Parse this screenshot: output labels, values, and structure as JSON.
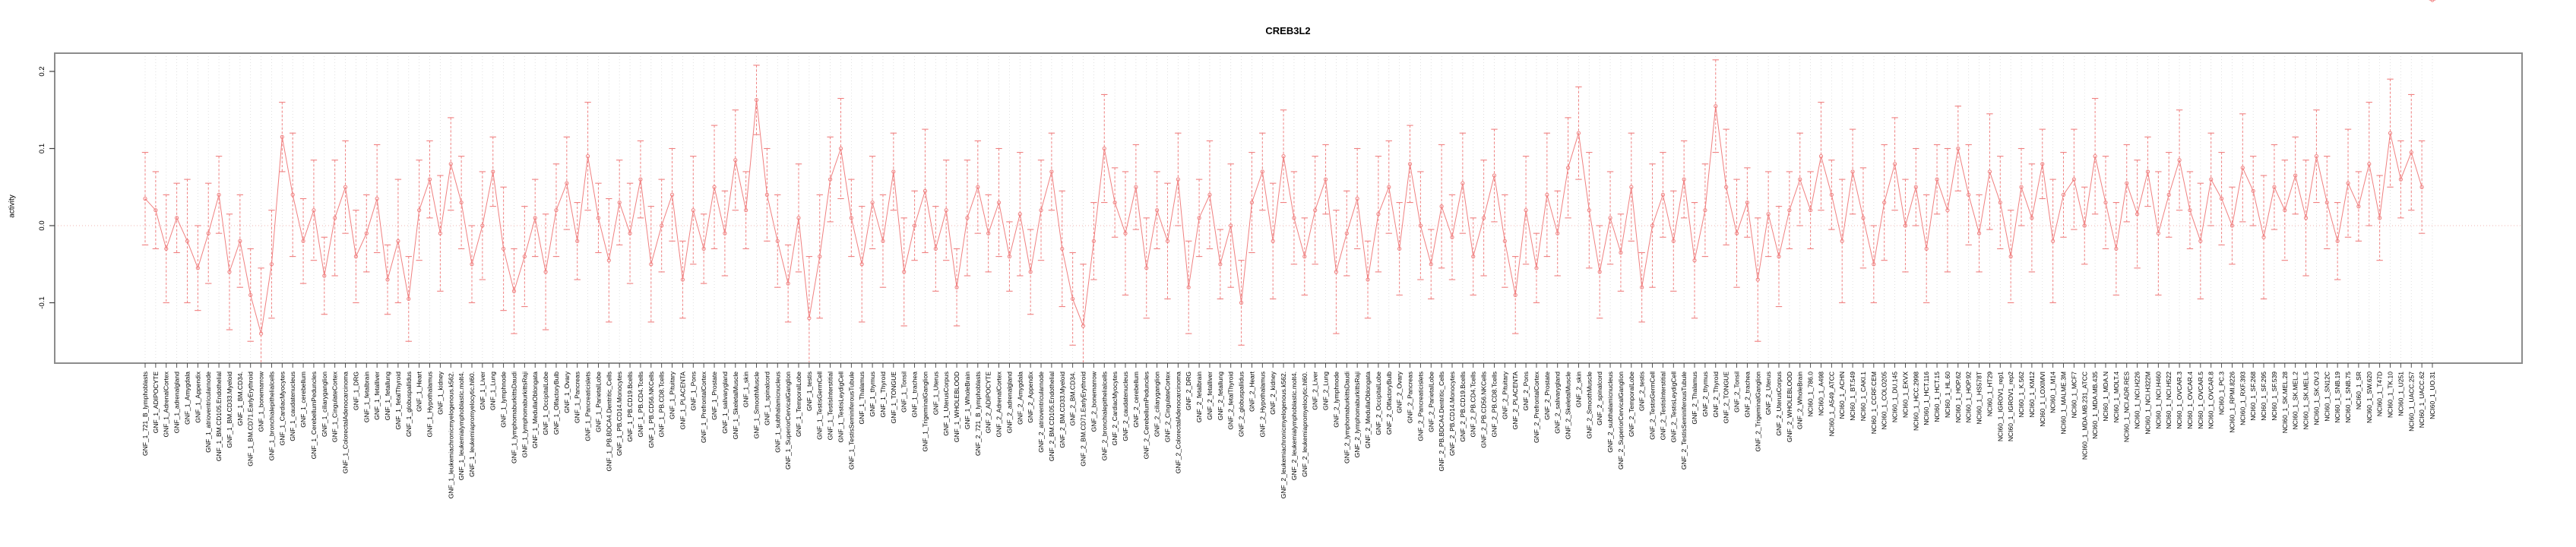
{
  "colors": {
    "series": "#f08080",
    "error_bar": "#f08080",
    "zero_line": "#f2b6b2",
    "grid_line": "#d9d9d9",
    "plot_border": "#8c8c8c",
    "tick": "#404040",
    "text": "#000000",
    "background": "#ffffff"
  },
  "chart_data": {
    "type": "line",
    "title": "CREB3L2",
    "xlabel": "",
    "ylabel": "activity",
    "ylim": [
      -0.178,
      0.224
    ],
    "yticks": [
      -0.1,
      0.0,
      0.1,
      0.2
    ],
    "grid": "vertical dotted gridline at every category; dotted zero line",
    "legend_position": "none",
    "marker": "open-circle",
    "error_bar_style": "dashed vertical line with solid caps",
    "categories": [
      "GNF_1_721_B_lymphoblasts",
      "GNF_1_ADIPOCYTE",
      "GNF_1_AdrenalCortex",
      "GNF_1_adrenalgland",
      "GNF_1_Amygdala",
      "GNF_1_Appendix",
      "GNF_1_atrioventricularnode",
      "GNF_1_BM.CD105.Endothelial",
      "GNF_1_BM.CD33.Myeloid",
      "GNF_1_BM.CD34.",
      "GNF_1_BM.CD71.EarlyErythroid",
      "GNF_1_bonemarrow",
      "GNF_1_bronchialepithelialcells",
      "GNF_1_CardiacMyocytes",
      "GNF_1_caudatenucleus",
      "GNF_1_cerebellum",
      "GNF_1_CerebellumPeduncles",
      "GNF_1_ciliaryganglion",
      "GNF_1_CingulateCortex",
      "GNF_1_ColorectalAdenocarcinoma",
      "GNF_1_DRG",
      "GNF_1_fetalbrain",
      "GNF_1_fetalliver",
      "GNF_1_fetallung",
      "GNF_1_fetalThyroid",
      "GNF_1_globuspallidus",
      "GNF_1_Heart",
      "GNF_1_Hypothalamus",
      "GNF_1_kidney",
      "GNF_1_leukemiachronicmyelogenous.k562.",
      "GNF_1_leukemialymphoblastic.molt4.",
      "GNF_1_leukemiapromyelocytic.hl60.",
      "GNF_1_Liver",
      "GNF_1_Lung",
      "GNF_1_lymphnode",
      "GNF_1_lymphomaburkittsDaudi",
      "GNF_1_lymphomaburkittsRaji",
      "GNF_1_MedullaOblongata",
      "GNF_1_OccipitalLobe",
      "GNF_1_OlfactoryBulb",
      "GNF_1_Ovary",
      "GNF_1_Pancreas",
      "GNF_1_Pancreaticislets",
      "GNF_1_ParietalLobe",
      "GNF_1_PB.BDCA4.Dentritic_Cells",
      "GNF_1_PB.CD14.Monocytes",
      "GNF_1_PB.CD19.Bcells",
      "GNF_1_PB.CD4.Tcells",
      "GNF_1_PB.CD56.NKCells",
      "GNF_1_PB.CD8.Tcells",
      "GNF_1_Pituitary",
      "GNF_1_PLACENTA",
      "GNF_1_Pons",
      "GNF_1_PrefrontalCortex",
      "GNF_1_Prostate",
      "GNF_1_salivarygland",
      "GNF_1_SkeletalMuscle",
      "GNF_1_skin",
      "GNF_1_SmoothMuscle",
      "GNF_1_spinalcord",
      "GNF_1_subthalamicnucleus",
      "GNF_1_SuperiorCervicalGanglion",
      "GNF_1_TemporalLobe",
      "GNF_1_testis",
      "GNF_1_TestisGermCell",
      "GNF_1_TestisInterstitial",
      "GNF_1_TestisLeydigCell",
      "GNF_1_TestisSeminiferousTubule",
      "GNF_1_Thalamus",
      "GNF_1_thymus",
      "GNF_1_Thyroid",
      "GNF_1_TONGUE",
      "GNF_1_Tonsil",
      "GNF_1_trachea",
      "GNF_1_TrigeminalGanglion",
      "GNF_1_Uterus",
      "GNF_1_UterusCorpus",
      "GNF_1_WHOLEBLOOD",
      "GNF_1_WholeBrain",
      "GNF_2_721_B_lymphoblasts",
      "GNF_2_ADIPOCYTE",
      "GNF_2_AdrenalCortex",
      "GNF_2_adrenalgland",
      "GNF_2_Amygdala",
      "GNF_2_Appendix",
      "GNF_2_atrioventricularnode",
      "GNF_2_BM.CD105.Endothelial",
      "GNF_2_BM.CD33.Myeloid",
      "GNF_2_BM.CD34.",
      "GNF_2_BM.CD71.EarlyErythroid",
      "GNF_2_bonemarrow",
      "GNF_2_bronchialepithelialcells",
      "GNF_2_CardiacMyocytes",
      "GNF_2_caudatenucleus",
      "GNF_2_cerebellum",
      "GNF_2_CerebellumPeduncles",
      "GNF_2_ciliaryganglion",
      "GNF_2_CingulateCortex",
      "GNF_2_ColorectalAdenocarcinoma",
      "GNF_2_DRG",
      "GNF_2_fetalbrain",
      "GNF_2_fetalliver",
      "GNF_2_fetallung",
      "GNF_2_fetalThyroid",
      "GNF_2_globuspallidus",
      "GNF_2_Heart",
      "GNF_2_Hypothalamus",
      "GNF_2_kidney",
      "GNF_2_leukemiachronicmyelogenous.k562.",
      "GNF_2_leukemialymphoblastic.molt4.",
      "GNF_2_leukemiapromyelocytic.hl60.",
      "GNF_2_Liver",
      "GNF_2_Lung",
      "GNF_2_lymphnode",
      "GNF_2_lymphomaburkittsDaudi",
      "GNF_2_lymphomaburkittsRaji",
      "GNF_2_MedullaOblongata",
      "GNF_2_OccipitalLobe",
      "GNF_2_OlfactoryBulb",
      "GNF_2_Ovary",
      "GNF_2_Pancreas",
      "GNF_2_Pancreaticislets",
      "GNF_2_ParietalLobe",
      "GNF_2_PB.BDCA4.Dentritic_Cells",
      "GNF_2_PB.CD14.Monocytes",
      "GNF_2_PB.CD19.Bcells",
      "GNF_2_PB.CD4.Tcells",
      "GNF_2_PB.CD56.NKCells",
      "GNF_2_PB.CD8.Tcells",
      "GNF_2_Pituitary",
      "GNF_2_PLACENTA",
      "GNF_2_Pons",
      "GNF_2_PrefrontalCortex",
      "GNF_2_Prostate",
      "GNF_2_salivarygland",
      "GNF_2_SkeletalMuscle",
      "GNF_2_skin",
      "GNF_2_SmoothMuscle",
      "GNF_2_spinalcord",
      "GNF_2_subthalamicnucleus",
      "GNF_2_SuperiorCervicalGanglion",
      "GNF_2_TemporalLobe",
      "GNF_2_testis",
      "GNF_2_TestisGermCell",
      "GNF_2_TestisInterstitial",
      "GNF_2_TestisLeydigCell",
      "GNF_2_TestisSeminiferousTubule",
      "GNF_2_Thalamus",
      "GNF_2_thymus",
      "GNF_2_Thyroid",
      "GNF_2_TONGUE",
      "GNF_2_Tonsil",
      "GNF_2_trachea",
      "GNF_2_TrigeminalGanglion",
      "GNF_2_Uterus",
      "GNF_2_UterusCorpus",
      "GNF_2_WHOLEBLOOD",
      "GNF_2_WholeBrain",
      "NCI60_1_786.0",
      "NCI60_1_A498",
      "NCI60_1_A549_ATCC",
      "NCI60_1_ACHN",
      "NCI60_1_BT.549",
      "NCI60_1_CAKI.1",
      "NCI60_1_CCRF.CEM",
      "NCI60_1_COLO205",
      "NCI60_1_DU.145",
      "NCI60_1_EKVX",
      "NCI60_1_HCC.2998",
      "NCI60_1_HCT.116",
      "NCI60_1_HCT.15",
      "NCI60_1_HL.60",
      "NCI60_1_HOP.62",
      "NCI60_1_HOP.92",
      "NCI60_1_HS578T",
      "NCI60_1_HT29",
      "NCI60_1_IGROV1_rep1",
      "NCI60_1_IGROV1_rep2",
      "NCI60_1_K.562",
      "NCI60_1_KM12",
      "NCI60_1_LOXIMVI",
      "NCI60_1_M14",
      "NCI60_1_MALME.3M",
      "NCI60_1_MCF7",
      "NCI60_1_MDA.MB.231_ATCC",
      "NCI60_1_MDA.MB.435",
      "NCI60_1_MDA.N",
      "NCI60_1_MOLT.4",
      "NCI60_1_NCI.ADR.RES",
      "NCI60_1_NCI.H226",
      "NCI60_1_NCI.H322M",
      "NCI60_1_NCI.H460",
      "NCI60_1_NCI.H522",
      "NCI60_1_OVCAR.3",
      "NCI60_1_OVCAR.4",
      "NCI60_1_OVCAR.5",
      "NCI60_1_OVCAR.8",
      "NCI60_1_PC.3",
      "NCI60_1_RPMI.8226",
      "NCI60_1_RXF.393",
      "NCI60_1_SF.268",
      "NCI60_1_SF.295",
      "NCI60_1_SF.539",
      "NCI60_1_SK.MEL.28",
      "NCI60_1_SK.MEL.2",
      "NCI60_1_SK.MEL.5",
      "NCI60_1_SK.OV.3",
      "NCI60_1_SN12C",
      "NCI60_1_SNB.19",
      "NCI60_1_SNB.75",
      "NCI60_1_SR",
      "NCI60_1_SW.620",
      "NCI60_1_T47D",
      "NCI60_1_TK.10",
      "NCI60_1_U251",
      "NCI60_1_UACC.257",
      "NCI60_1_UACC.62",
      "NCI60_1_UO.31"
    ],
    "values": [
      0.035,
      0.02,
      -0.03,
      0.01,
      -0.02,
      -0.055,
      -0.01,
      0.04,
      -0.06,
      -0.02,
      -0.09,
      -0.14,
      -0.05,
      0.115,
      0.04,
      -0.02,
      0.02,
      -0.065,
      0.01,
      0.05,
      -0.04,
      -0.01,
      0.035,
      -0.07,
      -0.02,
      -0.095,
      0.02,
      0.06,
      -0.01,
      0.08,
      0.03,
      -0.05,
      0.0,
      0.07,
      -0.03,
      -0.085,
      -0.04,
      0.01,
      -0.06,
      0.02,
      0.055,
      -0.02,
      0.09,
      0.01,
      -0.045,
      0.03,
      -0.01,
      0.06,
      -0.05,
      0.0,
      0.04,
      -0.07,
      0.02,
      -0.03,
      0.05,
      -0.01,
      0.085,
      0.02,
      0.163,
      0.04,
      -0.02,
      -0.075,
      0.01,
      -0.12,
      -0.04,
      0.06,
      0.1,
      0.01,
      -0.05,
      0.03,
      -0.02,
      0.07,
      -0.06,
      0.0,
      0.045,
      -0.03,
      0.02,
      -0.08,
      0.01,
      0.05,
      -0.01,
      0.03,
      -0.04,
      0.015,
      -0.06,
      0.02,
      0.07,
      -0.03,
      -0.095,
      -0.13,
      -0.02,
      0.1,
      0.03,
      -0.01,
      0.05,
      -0.055,
      0.02,
      -0.02,
      0.06,
      -0.08,
      0.01,
      0.04,
      -0.05,
      0.0,
      -0.1,
      0.03,
      0.07,
      -0.02,
      0.09,
      0.01,
      -0.04,
      0.02,
      0.06,
      -0.06,
      -0.01,
      0.035,
      -0.07,
      0.015,
      0.05,
      -0.03,
      0.08,
      0.0,
      -0.05,
      0.025,
      -0.015,
      0.055,
      -0.04,
      0.01,
      0.065,
      -0.02,
      -0.09,
      0.02,
      -0.055,
      0.04,
      -0.01,
      0.075,
      0.12,
      0.02,
      -0.06,
      0.01,
      -0.035,
      0.05,
      -0.08,
      0.0,
      0.04,
      -0.02,
      0.06,
      -0.045,
      0.02,
      0.155,
      0.05,
      -0.01,
      0.03,
      -0.07,
      0.015,
      -0.04,
      0.02,
      0.06,
      0.02,
      0.09,
      0.04,
      -0.02,
      0.07,
      0.01,
      -0.05,
      0.03,
      0.08,
      0.0,
      0.05,
      -0.03,
      0.06,
      0.02,
      0.1,
      0.04,
      -0.01,
      0.07,
      0.03,
      -0.04,
      0.05,
      0.01,
      0.08,
      -0.02,
      0.04,
      0.06,
      0.0,
      0.09,
      0.03,
      -0.03,
      0.055,
      0.015,
      0.07,
      -0.01,
      0.04,
      0.085,
      0.02,
      -0.02,
      0.06,
      0.035,
      0.0,
      0.075,
      0.045,
      -0.015,
      0.05,
      0.02,
      0.065,
      0.01,
      0.09,
      0.03,
      -0.02,
      0.055,
      0.025,
      0.08,
      0.01,
      0.12,
      0.06,
      0.095,
      0.05
    ],
    "errors": [
      0.06,
      0.05,
      0.07,
      0.045,
      0.08,
      0.055,
      0.065,
      0.05,
      0.075,
      0.06,
      0.06,
      0.085,
      0.07,
      0.045,
      0.08,
      0.055,
      0.065,
      0.05,
      0.075,
      0.06,
      0.06,
      0.05,
      0.07,
      0.045,
      0.08,
      0.055,
      0.065,
      0.05,
      0.075,
      0.06,
      0.06,
      0.05,
      0.07,
      0.045,
      0.08,
      0.055,
      0.065,
      0.05,
      0.075,
      0.06,
      0.06,
      0.05,
      0.07,
      0.045,
      0.08,
      0.055,
      0.065,
      0.05,
      0.075,
      0.06,
      0.06,
      0.05,
      0.07,
      0.045,
      0.08,
      0.055,
      0.065,
      0.05,
      0.045,
      0.06,
      0.06,
      0.05,
      0.07,
      0.08,
      0.08,
      0.055,
      0.065,
      0.05,
      0.075,
      0.06,
      0.06,
      0.05,
      0.07,
      0.045,
      0.08,
      0.055,
      0.065,
      0.05,
      0.075,
      0.06,
      0.05,
      0.07,
      0.045,
      0.08,
      0.055,
      0.065,
      0.05,
      0.075,
      0.06,
      0.08,
      0.05,
      0.07,
      0.045,
      0.08,
      0.055,
      0.065,
      0.05,
      0.075,
      0.06,
      0.06,
      0.05,
      0.07,
      0.045,
      0.08,
      0.055,
      0.065,
      0.05,
      0.075,
      0.06,
      0.06,
      0.05,
      0.07,
      0.045,
      0.08,
      0.055,
      0.065,
      0.05,
      0.075,
      0.06,
      0.06,
      0.05,
      0.07,
      0.045,
      0.08,
      0.055,
      0.065,
      0.05,
      0.075,
      0.06,
      0.06,
      0.05,
      0.07,
      0.045,
      0.08,
      0.055,
      0.065,
      0.06,
      0.075,
      0.06,
      0.06,
      0.05,
      0.07,
      0.045,
      0.08,
      0.055,
      0.065,
      0.05,
      0.075,
      0.06,
      0.06,
      0.075,
      0.07,
      0.045,
      0.08,
      0.055,
      0.065,
      0.05,
      0.06,
      0.05,
      0.07,
      0.045,
      0.08,
      0.055,
      0.065,
      0.05,
      0.075,
      0.06,
      0.06,
      0.05,
      0.07,
      0.045,
      0.08,
      0.055,
      0.065,
      0.05,
      0.075,
      0.06,
      0.06,
      0.05,
      0.07,
      0.045,
      0.08,
      0.055,
      0.065,
      0.05,
      0.075,
      0.06,
      0.06,
      0.05,
      0.07,
      0.045,
      0.08,
      0.055,
      0.065,
      0.05,
      0.075,
      0.06,
      0.06,
      0.05,
      0.07,
      0.045,
      0.08,
      0.055,
      0.065,
      0.05,
      0.075,
      0.06,
      0.06,
      0.05,
      0.07,
      0.045,
      0.08,
      0.055,
      0.07,
      0.05,
      0.075,
      0.06
    ]
  }
}
